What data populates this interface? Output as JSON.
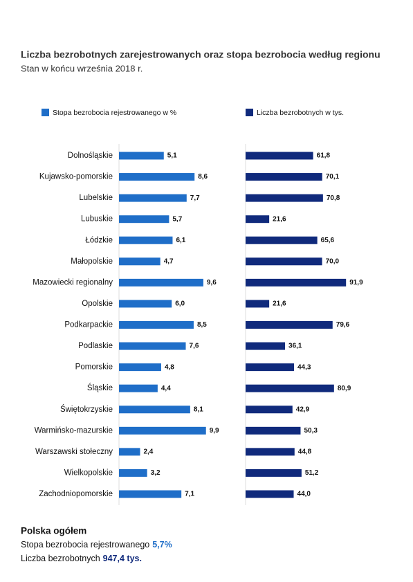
{
  "header": {
    "title": "Liczba bezrobotnych zarejestrowanych oraz stopa bezrobocia według regionu",
    "subtitle": "Stan w końcu września 2018 r."
  },
  "chart_data": [
    {
      "type": "bar",
      "orientation": "horizontal",
      "categories": [
        "Dolnośląskie",
        "Kujawsko-pomorskie",
        "Lubelskie",
        "Lubuskie",
        "Łódzkie",
        "Małopolskie",
        "Mazowiecki regionalny",
        "Opolskie",
        "Podkarpackie",
        "Podlaskie",
        "Pomorskie",
        "Śląskie",
        "Świętokrzyskie",
        "Warmińsko-mazurskie",
        "Warszawski stołeczny",
        "Wielkopolskie",
        "Zachodniopomorskie"
      ],
      "series": [
        {
          "name": "Stopa bezrobocia rejestrowanego w %",
          "color": "#1f6ec8",
          "values": [
            5.1,
            8.6,
            7.7,
            5.7,
            6.1,
            4.7,
            9.6,
            6.0,
            8.5,
            7.6,
            4.8,
            4.4,
            8.1,
            9.9,
            2.4,
            3.2,
            7.1
          ],
          "value_labels": [
            "5,1",
            "8,6",
            "7,7",
            "5,7",
            "6,1",
            "4,7",
            "9,6",
            "6,0",
            "8,5",
            "7,6",
            "4,8",
            "4,4",
            "8,1",
            "9,9",
            "2,4",
            "3,2",
            "7,1"
          ]
        }
      ],
      "xlim": [
        0,
        10
      ]
    },
    {
      "type": "bar",
      "orientation": "horizontal",
      "series": [
        {
          "name": "Liczba bezrobotnych w tys.",
          "color": "#102a7c",
          "values": [
            61.8,
            70.1,
            70.8,
            21.6,
            65.6,
            70.0,
            91.9,
            21.6,
            79.6,
            36.1,
            44.3,
            80.9,
            42.9,
            50.3,
            44.8,
            51.2,
            44.0
          ],
          "value_labels": [
            "61,8",
            "70,1",
            "70,8",
            "21,6",
            "65,6",
            "70,0",
            "91,9",
            "21,6",
            "79,6",
            "36,1",
            "44,3",
            "80,9",
            "42,9",
            "50,3",
            "44,8",
            "51,2",
            "44,0"
          ]
        }
      ],
      "xlim": [
        0,
        100
      ]
    }
  ],
  "summary": {
    "title": "Polska ogółem",
    "lines": [
      {
        "label": "Stopa bezrobocia rejestrowanego",
        "value": "5,7%"
      },
      {
        "label": "Liczba bezrobotnych",
        "value": "947,4 tys."
      }
    ]
  }
}
